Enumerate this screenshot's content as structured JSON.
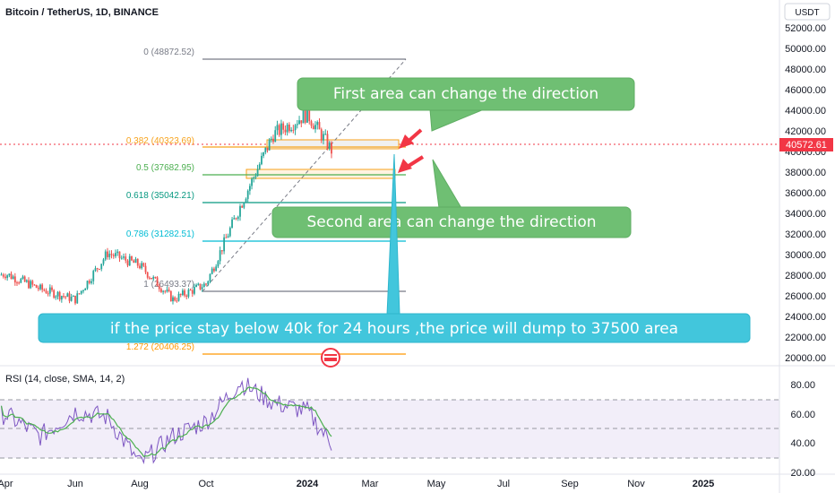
{
  "header": {
    "symbol": "Bitcoin / TetherUS, 1D, BINANCE",
    "currency_badge": "USDT"
  },
  "colors": {
    "up": "#26a69a",
    "down": "#ef5350",
    "green_callout": "#6fbf73",
    "teal_callout": "#42c6dc",
    "red_arrow": "#f23645",
    "fib_0": "#787b86",
    "fib_0382": "#f7a21b",
    "fib_05": "#4caf50",
    "fib_0618": "#089981",
    "fib_0786": "#00bcd4",
    "fib_1": "#787b86",
    "fib_1272": "#ff9800",
    "rsi_line": "#7e57c2",
    "rsi_sma": "#4caf50"
  },
  "price_axis": {
    "ticks": [
      "52000.00",
      "50000.00",
      "48000.00",
      "46000.00",
      "44000.00",
      "42000.00",
      "40000.00",
      "38000.00",
      "36000.00",
      "34000.00",
      "32000.00",
      "30000.00",
      "28000.00",
      "26000.00",
      "24000.00",
      "22000.00",
      "20000.00"
    ],
    "last_price": "40572.61"
  },
  "rsi_axis": {
    "ticks": [
      "80.00",
      "60.00",
      "40.00",
      "20.00"
    ]
  },
  "time_axis": {
    "ticks": [
      "Apr",
      "Jun",
      "Aug",
      "Oct",
      "2024",
      "Mar",
      "May",
      "Jul",
      "Sep",
      "Nov",
      "2025"
    ]
  },
  "fib_labels": {
    "f0": "0 (48872.52)",
    "f0382": "0.382 (40323.69)",
    "f05": "0.5 (37682.95)",
    "f0618": "0.618 (35042.21)",
    "f0786": "0.786 (31282.51)",
    "f1": "1 (26493.37)",
    "f1272": "1.272 (20406.25)"
  },
  "rsi_label": "RSI (14, close, SMA, 14, 2)",
  "callouts": {
    "first": "First area can change the direction",
    "second": "Second area can change the direction",
    "bottom": "if the price stay below 40k for 24 hours ,the price will dump to 37500 area"
  },
  "chart_data": {
    "type": "candlestick",
    "title": "Bitcoin / TetherUS, 1D, BINANCE",
    "ylim": [
      19500,
      53000
    ],
    "last_price": 40572.61,
    "fibonacci_levels": [
      {
        "ratio": "0",
        "price": 48872.52
      },
      {
        "ratio": "0.382",
        "price": 40323.69
      },
      {
        "ratio": "0.5",
        "price": 37682.95
      },
      {
        "ratio": "0.618",
        "price": 35042.21
      },
      {
        "ratio": "0.786",
        "price": 31282.51
      },
      {
        "ratio": "1",
        "price": 26493.37
      },
      {
        "ratio": "1.272",
        "price": 20406.25
      }
    ],
    "price_path": [
      {
        "t": "Mar",
        "p": 27800
      },
      {
        "t": "Apr",
        "p": 28500
      },
      {
        "t": "May",
        "p": 27000
      },
      {
        "t": "Jun",
        "p": 26000
      },
      {
        "t": "Jul",
        "p": 30500
      },
      {
        "t": "Aug",
        "p": 29300
      },
      {
        "t": "Sep",
        "p": 26000
      },
      {
        "t": "Oct",
        "p": 27500
      },
      {
        "t": "Nov",
        "p": 35000
      },
      {
        "t": "Dec",
        "p": 42000
      },
      {
        "t": "2024",
        "p": 44000
      },
      {
        "t": "Jan",
        "p": 40500
      }
    ],
    "rsi": {
      "name": "RSI (14, close, SMA, 14, 2)",
      "ylim": [
        20,
        90
      ],
      "levels": [
        70,
        50,
        30
      ],
      "path": [
        {
          "t": "Mar",
          "v": 56
        },
        {
          "t": "Apr",
          "v": 60
        },
        {
          "t": "May",
          "v": 45
        },
        {
          "t": "Jun",
          "v": 62
        },
        {
          "t": "Jul",
          "v": 58
        },
        {
          "t": "Aug",
          "v": 26
        },
        {
          "t": "Sep",
          "v": 45
        },
        {
          "t": "Oct",
          "v": 55
        },
        {
          "t": "Nov",
          "v": 82
        },
        {
          "t": "Dec",
          "v": 68
        },
        {
          "t": "2024",
          "v": 62
        },
        {
          "t": "Jan",
          "v": 40
        }
      ]
    }
  }
}
